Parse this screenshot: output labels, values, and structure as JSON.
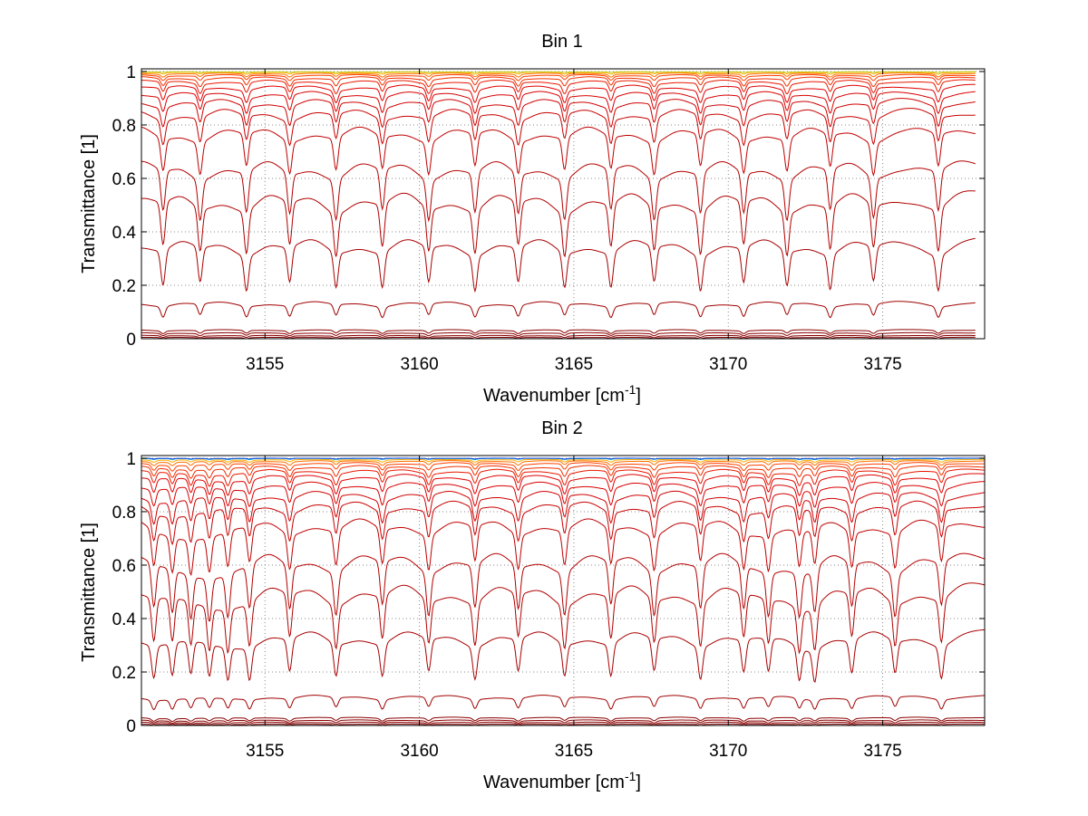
{
  "chart_data": [
    {
      "type": "line",
      "title": "Bin 1",
      "xlabel": "Wavenumber [cm",
      "xlabel_sup": "-1",
      "xlabel_end": "]",
      "ylabel": "Transmittance [1]",
      "xlim": [
        3151,
        3178.3
      ],
      "ylim": [
        0,
        1.01
      ],
      "xticks": [
        3155,
        3160,
        3165,
        3170,
        3175
      ],
      "yticks": [
        0,
        0.2,
        0.4,
        0.6,
        0.8,
        1
      ],
      "ytick_labels": [
        "0",
        "0.2",
        "0.4",
        "0.6",
        "0.8",
        "1"
      ],
      "grid": true,
      "line_x_end": 3178,
      "dips": [
        3151.7,
        3152.9,
        3154.4,
        3155.8,
        3157.3,
        3158.8,
        3160.3,
        3161.8,
        3163.2,
        3164.7,
        3166.2,
        3167.6,
        3169.1,
        3170.5,
        3171.9,
        3173.3,
        3174.7,
        3176.8
      ],
      "series": [
        {
          "base": 0.005,
          "depth": 0.004,
          "color": "#800000"
        },
        {
          "base": 0.012,
          "depth": 0.006,
          "color": "#8b0000"
        },
        {
          "base": 0.022,
          "depth": 0.008,
          "color": "#8b0000"
        },
        {
          "base": 0.033,
          "depth": 0.01,
          "color": "#8b0000"
        },
        {
          "base": 0.135,
          "depth": 0.04,
          "color": "#a00000"
        },
        {
          "base": 0.36,
          "depth": 0.13,
          "color": "#a80000"
        },
        {
          "base": 0.53,
          "depth": 0.16,
          "color": "#b00000"
        },
        {
          "base": 0.65,
          "depth": 0.15,
          "color": "#b40000"
        },
        {
          "base": 0.78,
          "depth": 0.12,
          "color": "#bf0000"
        },
        {
          "base": 0.85,
          "depth": 0.09,
          "color": "#c80000"
        },
        {
          "base": 0.89,
          "depth": 0.07,
          "color": "#d00000"
        },
        {
          "base": 0.92,
          "depth": 0.055,
          "color": "#d80000"
        },
        {
          "base": 0.945,
          "depth": 0.045,
          "color": "#e00000"
        },
        {
          "base": 0.965,
          "depth": 0.035,
          "color": "#e81800"
        },
        {
          "base": 0.978,
          "depth": 0.025,
          "color": "#f03000"
        },
        {
          "base": 0.987,
          "depth": 0.015,
          "color": "#ff4000"
        },
        {
          "base": 0.993,
          "depth": 0.01,
          "color": "#ff7000"
        },
        {
          "base": 0.997,
          "depth": 0.005,
          "color": "#ffb000"
        },
        {
          "base": 0.999,
          "depth": 0.002,
          "color": "#c0d020"
        }
      ]
    },
    {
      "type": "line",
      "title": "Bin 2",
      "xlabel": "Wavenumber [cm",
      "xlabel_sup": "-1",
      "xlabel_end": "]",
      "ylabel": "Transmittance [1]",
      "xlim": [
        3151,
        3178.3
      ],
      "ylim": [
        0,
        1.01
      ],
      "xticks": [
        3155,
        3160,
        3165,
        3170,
        3175
      ],
      "yticks": [
        0,
        0.2,
        0.4,
        0.6,
        0.8,
        1
      ],
      "ytick_labels": [
        "0",
        "0.2",
        "0.4",
        "0.6",
        "0.8",
        "1"
      ],
      "grid": true,
      "line_x_end": 3178.3,
      "dips": [
        3151.4,
        3152.0,
        3152.6,
        3153.2,
        3153.8,
        3154.5,
        3155.8,
        3157.3,
        3158.8,
        3160.3,
        3161.8,
        3163.2,
        3164.7,
        3166.2,
        3167.6,
        3169.1,
        3170.5,
        3171.3,
        3172.3,
        3172.8,
        3174.0,
        3175.4,
        3176.9
      ],
      "series": [
        {
          "base": 0.005,
          "depth": 0.004,
          "color": "#800000"
        },
        {
          "base": 0.012,
          "depth": 0.006,
          "color": "#8b0000"
        },
        {
          "base": 0.02,
          "depth": 0.008,
          "color": "#8b0000"
        },
        {
          "base": 0.03,
          "depth": 0.01,
          "color": "#8b0000"
        },
        {
          "base": 0.11,
          "depth": 0.035,
          "color": "#a00000"
        },
        {
          "base": 0.34,
          "depth": 0.12,
          "color": "#a80000"
        },
        {
          "base": 0.51,
          "depth": 0.16,
          "color": "#b00000"
        },
        {
          "base": 0.63,
          "depth": 0.16,
          "color": "#b40000"
        },
        {
          "base": 0.76,
          "depth": 0.13,
          "color": "#bf0000"
        },
        {
          "base": 0.83,
          "depth": 0.1,
          "color": "#c80000"
        },
        {
          "base": 0.87,
          "depth": 0.08,
          "color": "#d00000"
        },
        {
          "base": 0.905,
          "depth": 0.06,
          "color": "#d80000"
        },
        {
          "base": 0.935,
          "depth": 0.05,
          "color": "#e00000"
        },
        {
          "base": 0.955,
          "depth": 0.04,
          "color": "#e81800"
        },
        {
          "base": 0.97,
          "depth": 0.03,
          "color": "#f03000"
        },
        {
          "base": 0.982,
          "depth": 0.02,
          "color": "#ff4000"
        },
        {
          "base": 0.99,
          "depth": 0.012,
          "color": "#ff7000"
        },
        {
          "base": 0.995,
          "depth": 0.007,
          "color": "#ffb000"
        },
        {
          "base": 0.999,
          "depth": 0.003,
          "color": "#20b0c0"
        },
        {
          "base": 1.0,
          "depth": 0.002,
          "color": "#1040e0"
        }
      ]
    }
  ]
}
